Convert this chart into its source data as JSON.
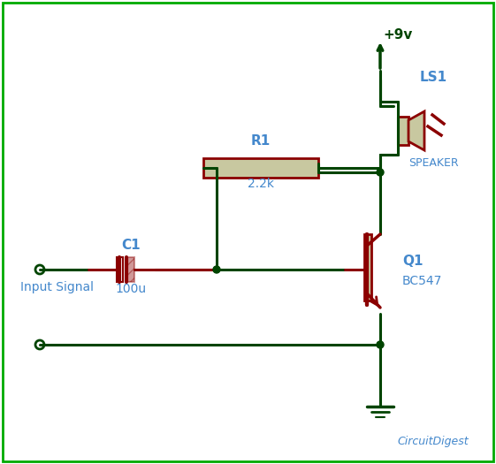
{
  "bg_color": "#ffffff",
  "border_color": "#00aa00",
  "wire_color": "#004400",
  "component_color": "#8b0000",
  "node_color": "#004400",
  "text_color_blue": "#4488cc",
  "text_color_dark": "#004400",
  "resistor_fill": "#c8c8a0",
  "speaker_fill": "#c8c8a0",
  "title": "",
  "watermark": "CircuitDigest",
  "supply_label": "+9v",
  "gnd_label": "",
  "r1_label": "R1",
  "r1_val": "2.2k",
  "c1_label": "C1",
  "c1_val": "100u",
  "q1_label": "Q1",
  "q1_val": "BC547",
  "ls1_label": "LS1",
  "ls1_val": "SPEAKER",
  "input_label": "Input Signal"
}
